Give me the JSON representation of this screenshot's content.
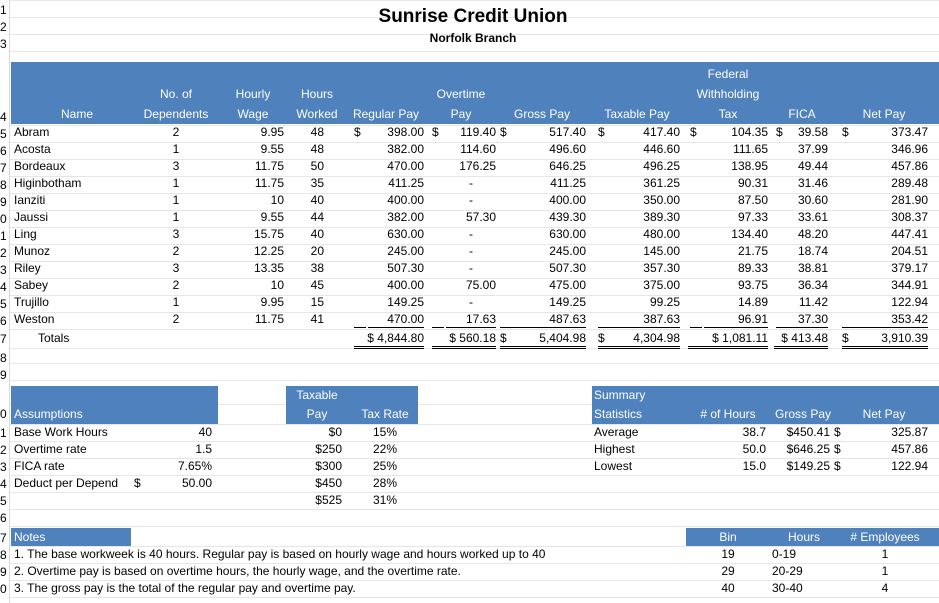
{
  "title": "Sunrise Credit Union",
  "subtitle": "Norfolk Branch",
  "row_numbers": [
    "1",
    "2",
    "3",
    "4",
    "5",
    "6",
    "7",
    "8",
    "9",
    "0",
    "1",
    "2",
    "3",
    "4",
    "5",
    "6",
    "7",
    "8",
    "9",
    "0",
    "1",
    "2",
    "3",
    "4",
    "5",
    "6",
    "7",
    "8",
    "9",
    "0"
  ],
  "payroll_headers": {
    "name": "Name",
    "dependents_1": "No. of",
    "dependents_2": "Dependents",
    "wage_1": "Hourly",
    "wage_2": "Wage",
    "hours_1": "Hours",
    "hours_2": "Worked",
    "regular": "Regular Pay",
    "overtime_1": "Overtime",
    "overtime_2": "Pay",
    "gross": "Gross Pay",
    "taxable": "Taxable Pay",
    "fed_1": "Federal",
    "fed_2": "Withholding",
    "fed_3": "Tax",
    "fica": "FICA",
    "net": "Net Pay"
  },
  "employees": [
    {
      "name": "Abram",
      "dep": "2",
      "wage": "9.95",
      "hours": "48",
      "reg_sym": "$",
      "regular": "398.00",
      "ot_sym": "$",
      "overtime": "119.40",
      "gross_sym": "$",
      "gross": "517.40",
      "tax_sym": "$",
      "taxable": "417.40",
      "fed_sym": "$",
      "fed": "104.35",
      "fica_sym": "$",
      "fica": "39.58",
      "net_sym": "$",
      "net": "373.47"
    },
    {
      "name": "Acosta",
      "dep": "1",
      "wage": "9.55",
      "hours": "48",
      "regular": "382.00",
      "overtime": "114.60",
      "gross": "496.60",
      "taxable": "446.60",
      "fed": "111.65",
      "fica": "37.99",
      "net": "346.96"
    },
    {
      "name": "Bordeaux",
      "dep": "3",
      "wage": "11.75",
      "hours": "50",
      "regular": "470.00",
      "overtime": "176.25",
      "gross": "646.25",
      "taxable": "496.25",
      "fed": "138.95",
      "fica": "49.44",
      "net": "457.86"
    },
    {
      "name": "Higinbotham",
      "dep": "1",
      "wage": "11.75",
      "hours": "35",
      "regular": "411.25",
      "overtime": "-",
      "gross": "411.25",
      "taxable": "361.25",
      "fed": "90.31",
      "fica": "31.46",
      "net": "289.48"
    },
    {
      "name": "Ianziti",
      "dep": "1",
      "wage": "10",
      "hours": "40",
      "regular": "400.00",
      "overtime": "-",
      "gross": "400.00",
      "taxable": "350.00",
      "fed": "87.50",
      "fica": "30.60",
      "net": "281.90"
    },
    {
      "name": "Jaussi",
      "dep": "1",
      "wage": "9.55",
      "hours": "44",
      "regular": "382.00",
      "overtime": "57.30",
      "gross": "439.30",
      "taxable": "389.30",
      "fed": "97.33",
      "fica": "33.61",
      "net": "308.37"
    },
    {
      "name": "Ling",
      "dep": "3",
      "wage": "15.75",
      "hours": "40",
      "regular": "630.00",
      "overtime": "-",
      "gross": "630.00",
      "taxable": "480.00",
      "fed": "134.40",
      "fica": "48.20",
      "net": "447.41"
    },
    {
      "name": "Munoz",
      "dep": "2",
      "wage": "12.25",
      "hours": "20",
      "regular": "245.00",
      "overtime": "-",
      "gross": "245.00",
      "taxable": "145.00",
      "fed": "21.75",
      "fica": "18.74",
      "net": "204.51"
    },
    {
      "name": "Riley",
      "dep": "3",
      "wage": "13.35",
      "hours": "38",
      "regular": "507.30",
      "overtime": "-",
      "gross": "507.30",
      "taxable": "357.30",
      "fed": "89.33",
      "fica": "38.81",
      "net": "379.17"
    },
    {
      "name": "Sabey",
      "dep": "2",
      "wage": "10",
      "hours": "45",
      "regular": "400.00",
      "overtime": "75.00",
      "gross": "475.00",
      "taxable": "375.00",
      "fed": "93.75",
      "fica": "36.34",
      "net": "344.91"
    },
    {
      "name": "Trujillo",
      "dep": "1",
      "wage": "9.95",
      "hours": "15",
      "regular": "149.25",
      "overtime": "-",
      "gross": "149.25",
      "taxable": "99.25",
      "fed": "14.89",
      "fica": "11.42",
      "net": "122.94"
    },
    {
      "name": "Weston",
      "dep": "2",
      "wage": "11.75",
      "hours": "41",
      "regular": "470.00",
      "overtime": "17.63",
      "gross": "487.63",
      "taxable": "387.63",
      "fed": "96.91",
      "fica": "37.30",
      "net": "353.42"
    }
  ],
  "totals": {
    "label": "Totals",
    "regular": "$ 4,844.80",
    "overtime": "$ 560.18",
    "gross_sym": "$",
    "gross": "5,404.98",
    "tax_sym": "$",
    "taxable": "4,304.98",
    "fed": "$ 1,081.11",
    "fica": "$ 413.48",
    "net_sym": "$",
    "net": "3,910.39"
  },
  "assumptions": {
    "header": "Assumptions",
    "items": [
      {
        "label": "Base Work Hours",
        "sym": "",
        "value": "40"
      },
      {
        "label": "Overtime rate",
        "sym": "",
        "value": "1.5"
      },
      {
        "label": "FICA rate",
        "sym": "",
        "value": "7.65%"
      },
      {
        "label": "Deduct per Depend",
        "sym": "$",
        "value": "50.00"
      }
    ]
  },
  "tax_table": {
    "taxable_1": "Taxable",
    "taxable_2": "Pay",
    "rate": "Tax Rate",
    "rows": [
      {
        "pay": "$0",
        "rate": "15%"
      },
      {
        "pay": "$250",
        "rate": "22%"
      },
      {
        "pay": "$300",
        "rate": "25%"
      },
      {
        "pay": "$450",
        "rate": "28%"
      },
      {
        "pay": "$525",
        "rate": "31%"
      }
    ]
  },
  "summary": {
    "header_1": "Summary",
    "header_2": "Statistics",
    "hours": "# of Hours",
    "gross": "Gross Pay",
    "net": "Net Pay",
    "rows": [
      {
        "label": "Average",
        "hours": "38.7",
        "gross": "$450.41",
        "net_sym": "$",
        "net": "325.87"
      },
      {
        "label": "Highest",
        "hours": "50.0",
        "gross": "$646.25",
        "net_sym": "$",
        "net": "457.86"
      },
      {
        "label": "Lowest",
        "hours": "15.0",
        "gross": "$149.25",
        "net_sym": "$",
        "net": "122.94"
      }
    ]
  },
  "notes": {
    "header": "Notes",
    "lines": [
      "1. The base workweek is 40 hours. Regular pay is based on hourly wage and hours worked up to 40",
      "2. Overtime pay is based on overtime hours, the hourly wage, and the overtime rate.",
      "3. The gross pay is the total of the regular pay and overtime pay."
    ]
  },
  "bins": {
    "bin": "Bin",
    "hours": "Hours",
    "employees": "# Employees",
    "rows": [
      {
        "bin": "19",
        "hours": "0-19",
        "count": "1"
      },
      {
        "bin": "29",
        "hours": "20-29",
        "count": "1"
      },
      {
        "bin": "40",
        "hours": "30-40",
        "count": "4"
      }
    ]
  },
  "colors": {
    "header_blue": "#4f81bd",
    "header_text": "#ffffff"
  }
}
